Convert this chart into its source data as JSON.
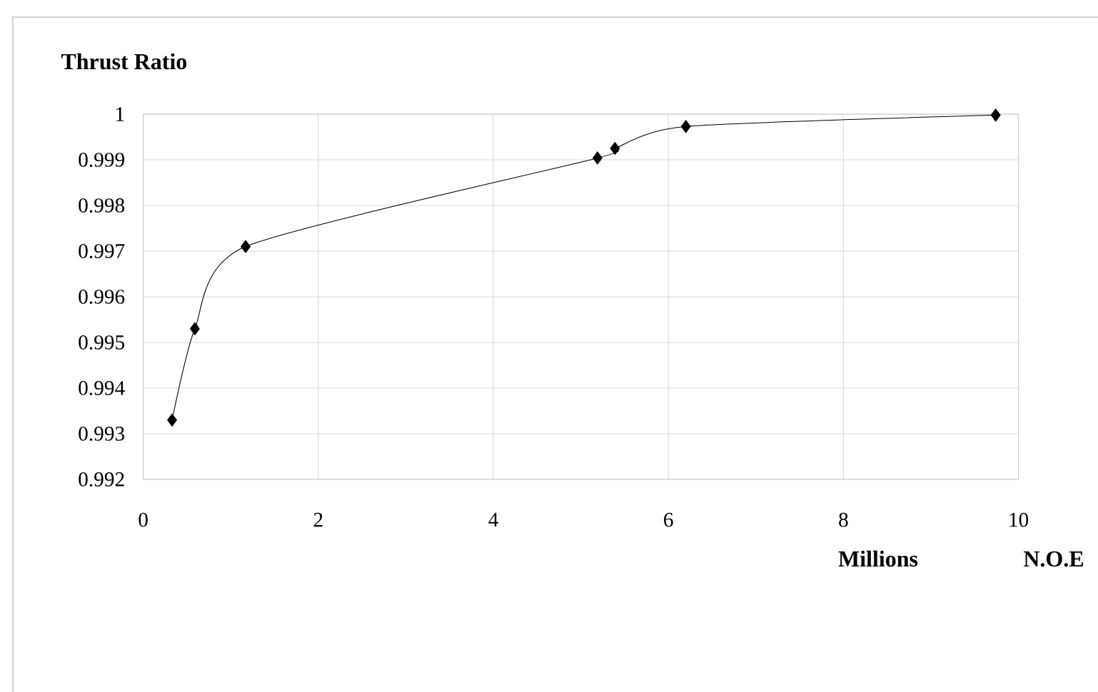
{
  "chart_data": {
    "type": "line",
    "ylabel": "Thrust Ratio",
    "xlabel": "N.O.E",
    "annotations": [
      "Millions"
    ],
    "series": [
      {
        "color": "#000000",
        "x": [
          0.33,
          0.59,
          1.17,
          5.19,
          5.39,
          6.2,
          9.74
        ],
        "values": [
          0.9933,
          0.9953,
          0.9971,
          0.99904,
          0.99925,
          0.99973,
          0.99998
        ]
      }
    ],
    "xlim": [
      0,
      10
    ],
    "xticks": [
      0,
      2,
      4,
      6,
      8,
      10
    ],
    "ylim": [
      0.992,
      1
    ],
    "yticks": [
      0.992,
      0.993,
      0.994,
      0.995,
      0.996,
      0.997,
      0.998,
      0.999,
      1
    ],
    "grid": true,
    "marker": "diamond",
    "line_style": "solid"
  }
}
